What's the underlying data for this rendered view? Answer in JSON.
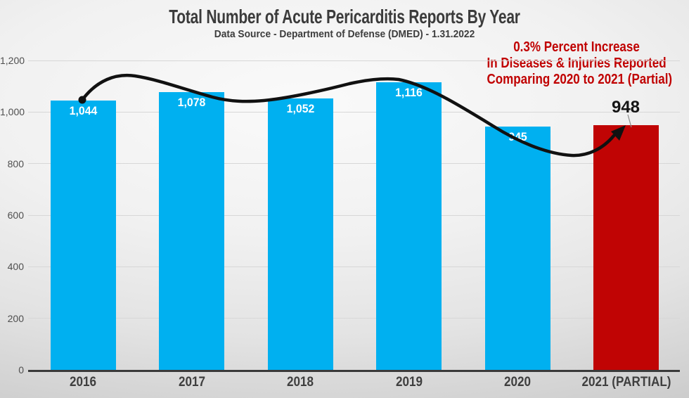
{
  "title": "Total Number of Acute Pericarditis Reports By Year",
  "subtitle": "Data Source - Department of Defense (DMED) - 1.31.2022",
  "annotation": {
    "lines": [
      "0.3% Percent Increase",
      "In Diseases & Injuries Reported",
      "Comparing 2020 to 2021 (Partial)"
    ],
    "color": "#c00000"
  },
  "chart_data": {
    "type": "bar",
    "title": "Total Number of Acute Pericarditis Reports By Year",
    "categories": [
      "2016",
      "2017",
      "2018",
      "2019",
      "2020",
      "2021 (PARTIAL)"
    ],
    "values": [
      1044,
      1078,
      1052,
      1116,
      945,
      948
    ],
    "value_labels": [
      "1,044",
      "1,078",
      "1,052",
      "1,116",
      "945",
      "948"
    ],
    "label_inside": [
      true,
      true,
      true,
      true,
      true,
      false
    ],
    "callout_label": "948",
    "bar_colors": [
      "#00b0f0",
      "#00b0f0",
      "#00b0f0",
      "#00b0f0",
      "#00b0f0",
      "#c00404"
    ],
    "ylim": [
      0,
      1200
    ],
    "yticks": [
      0,
      200,
      400,
      600,
      800,
      1000,
      1200
    ],
    "ytick_labels": [
      "0",
      "200",
      "400",
      "600",
      "800",
      "1,000",
      "1,200"
    ],
    "grid": true,
    "legend": "none",
    "trend_annotation": "black smoothed curve with dot at 2016 bar top and arrow pointing to 2021 (Partial) bar top",
    "colors": {
      "blue_bar": "#00b0f0",
      "red_bar": "#c00404",
      "trend_line": "#111111",
      "annotation_text": "#c00000",
      "axis_text": "#4f4f4f",
      "title_text": "#3b3b3b"
    }
  }
}
